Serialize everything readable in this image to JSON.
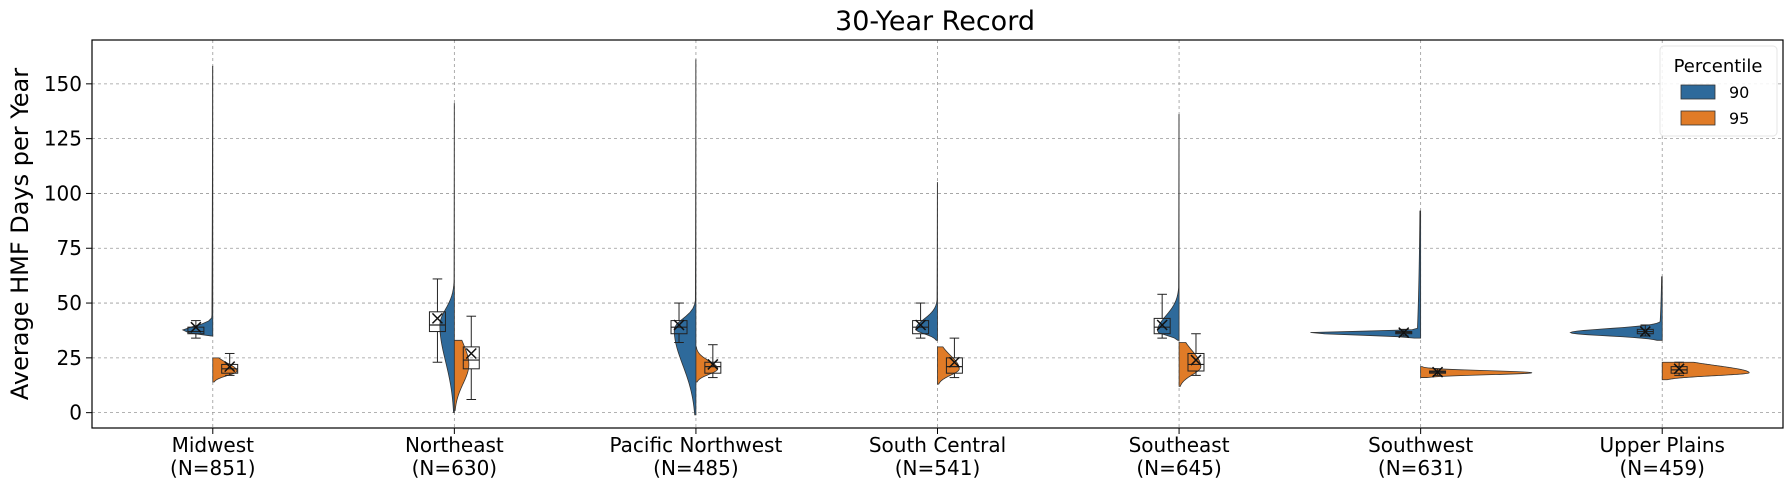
{
  "chart_data": {
    "type": "violin",
    "title": "30-Year Record",
    "xlabel": "",
    "ylabel": "Average HMF Days per Year",
    "ylim": [
      -7,
      170
    ],
    "yticks": [
      0,
      25,
      50,
      75,
      100,
      125,
      150
    ],
    "grid": true,
    "legend": {
      "title": "Percentile",
      "placement": "top-right",
      "entries": [
        "90",
        "95"
      ]
    },
    "colors": {
      "90": "#2e6a9b",
      "95": "#e07b27"
    },
    "categories": [
      {
        "name": "Midwest",
        "n_label": "(N=851)"
      },
      {
        "name": "Northeast",
        "n_label": "(N=630)"
      },
      {
        "name": "Pacific Northwest",
        "n_label": "(N=485)"
      },
      {
        "name": "South Central",
        "n_label": "(N=541)"
      },
      {
        "name": "Southeast",
        "n_label": "(N=645)"
      },
      {
        "name": "Southwest",
        "n_label": "(N=631)"
      },
      {
        "name": "Upper Plains",
        "n_label": "(N=459)"
      }
    ],
    "series": [
      {
        "name": "90",
        "stats": [
          {
            "min": 35,
            "max": 158,
            "q1": 36,
            "median": 37,
            "q3": 39,
            "whisker_low": 34,
            "whisker_high": 42,
            "mean": 39,
            "peak": 37,
            "peak_width": 0.13
          },
          {
            "min": 0,
            "max": 141,
            "q1": 37,
            "median": 40,
            "q3": 46,
            "whisker_low": 23,
            "whisker_high": 61,
            "mean": 43,
            "peak": 40,
            "peak_width": 0.06
          },
          {
            "min": -1,
            "max": 161,
            "q1": 36,
            "median": 39,
            "q3": 42,
            "whisker_low": 32,
            "whisker_high": 50,
            "mean": 40,
            "peak": 38,
            "peak_width": 0.09
          },
          {
            "min": 33,
            "max": 105,
            "q1": 36,
            "median": 39,
            "q3": 42,
            "whisker_low": 34,
            "whisker_high": 50,
            "mean": 40,
            "peak": 38,
            "peak_width": 0.09
          },
          {
            "min": 33,
            "max": 136,
            "q1": 36,
            "median": 39,
            "q3": 43,
            "whisker_low": 34,
            "whisker_high": 54,
            "mean": 40,
            "peak": 37,
            "peak_width": 0.09
          },
          {
            "min": 34,
            "max": 92,
            "q1": 36,
            "median": 36.5,
            "q3": 37,
            "whisker_low": 35,
            "whisker_high": 38,
            "mean": 36.5,
            "peak": 36.5,
            "peak_width": 0.46
          },
          {
            "min": 33,
            "max": 62,
            "q1": 36,
            "median": 37,
            "q3": 38,
            "whisker_low": 35,
            "whisker_high": 40,
            "mean": 37,
            "peak": 36.5,
            "peak_width": 0.38
          }
        ]
      },
      {
        "name": "95",
        "stats": [
          {
            "min": 14,
            "max": 25,
            "q1": 18,
            "median": 20,
            "q3": 22,
            "whisker_low": 17,
            "whisker_high": 27,
            "mean": 21,
            "peak": 19,
            "peak_width": 0.1
          },
          {
            "min": 1,
            "max": 33,
            "q1": 20,
            "median": 24,
            "q3": 30,
            "whisker_low": 6,
            "whisker_high": 44,
            "mean": 27,
            "peak": 22,
            "peak_width": 0.06
          },
          {
            "min": 14,
            "max": 30,
            "q1": 18,
            "median": 21,
            "q3": 23,
            "whisker_low": 16,
            "whisker_high": 31,
            "mean": 22,
            "peak": 20,
            "peak_width": 0.09
          },
          {
            "min": 13,
            "max": 30,
            "q1": 18,
            "median": 21,
            "q3": 25,
            "whisker_low": 16,
            "whisker_high": 34,
            "mean": 23,
            "peak": 20,
            "peak_width": 0.09
          },
          {
            "min": 12,
            "max": 32,
            "q1": 19,
            "median": 22,
            "q3": 27,
            "whisker_low": 17,
            "whisker_high": 36,
            "mean": 24,
            "peak": 21,
            "peak_width": 0.09
          },
          {
            "min": 16,
            "max": 21,
            "q1": 18,
            "median": 18.5,
            "q3": 19,
            "whisker_low": 17,
            "whisker_high": 20,
            "mean": 18.5,
            "peak": 18.2,
            "peak_width": 0.46
          },
          {
            "min": 15,
            "max": 23,
            "q1": 18,
            "median": 19.5,
            "q3": 21,
            "whisker_low": 17,
            "whisker_high": 23,
            "mean": 20,
            "peak": 18.2,
            "peak_width": 0.36
          }
        ]
      }
    ]
  }
}
